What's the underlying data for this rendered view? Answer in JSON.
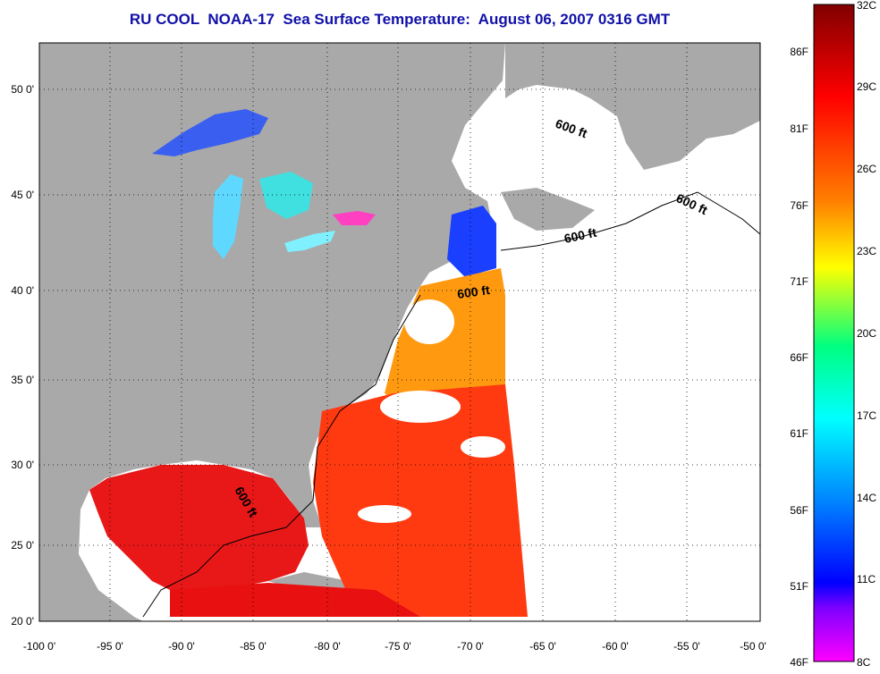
{
  "title": "RU COOL  NOAA-17  Sea Surface Temperature:  August 06, 2007 0316 GMT",
  "map": {
    "lon_ticks": [
      "-100 0'",
      "-95 0'",
      "-90 0'",
      "-85 0'",
      "-80 0'",
      "-75 0'",
      "-70 0'",
      "-65 0'",
      "-60 0'",
      "-55 0'",
      "-50 0'"
    ],
    "lat_ticks": [
      "50 0'",
      "45 0'",
      "40 0'",
      "35 0'",
      "30 0'",
      "25 0'",
      "20 0'"
    ],
    "contour_labels": [
      "600 ft",
      "600 ft",
      "600 ft",
      "600 ft",
      "600 ft"
    ],
    "colors": {
      "land": "#a9a9a9",
      "no_data": "#ffffff",
      "graticule": "#000000",
      "title": "#1010a8"
    }
  },
  "colorbar": {
    "celsius_labels": [
      "32C",
      "29C",
      "26C",
      "23C",
      "20C",
      "17C",
      "14C",
      "11C",
      "8C"
    ],
    "fahrenheit_labels": [
      "86F",
      "81F",
      "76F",
      "71F",
      "66F",
      "61F",
      "56F",
      "51F",
      "46F"
    ],
    "colors": [
      "#800000",
      "#ff0000",
      "#ff8000",
      "#ffff00",
      "#00ff80",
      "#00ffff",
      "#0080ff",
      "#0000ff",
      "#8000ff",
      "#ff00ff"
    ]
  }
}
